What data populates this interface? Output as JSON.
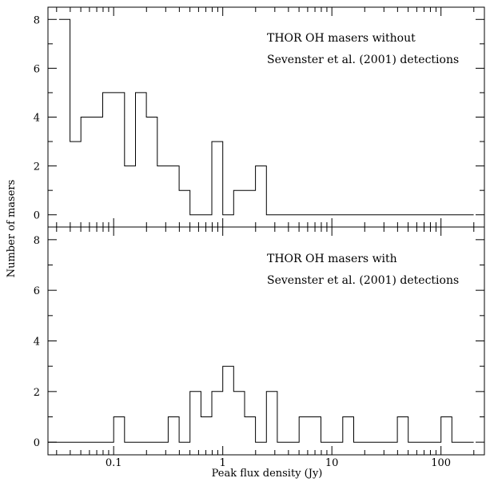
{
  "chart_data": {
    "type": "histogram",
    "xlabel": "Peak flux density (Jy)",
    "ylabel": "Number of masers",
    "xscale": "log",
    "xlim": [
      0.025,
      250
    ],
    "x_tick_labels": [
      "0.1",
      "1",
      "10",
      "100"
    ],
    "x_tick_values": [
      0.1,
      1,
      10,
      100
    ],
    "shared_x_axis": true,
    "panels": [
      {
        "annotation": [
          "THOR OH masers without",
          "Sevenster et al. (2001) detections"
        ],
        "ylim": [
          -0.5,
          8.5
        ],
        "y_tick_labels": [
          "0",
          "2",
          "4",
          "6",
          "8"
        ],
        "y_tick_values": [
          0,
          2,
          4,
          6,
          8
        ],
        "bin_edges": [
          0.0316,
          0.0398,
          0.0501,
          0.0631,
          0.0794,
          0.1,
          0.1259,
          0.1585,
          0.1995,
          0.2512,
          0.3162,
          0.3981,
          0.5012,
          0.631,
          0.7943,
          1.0,
          1.2589,
          1.5849,
          1.9953,
          2.5119,
          199.5
        ],
        "counts": [
          8,
          3,
          4,
          4,
          5,
          5,
          2,
          5,
          4,
          2,
          2,
          1,
          0,
          0,
          3,
          0,
          1,
          1,
          2,
          0
        ]
      },
      {
        "annotation": [
          "THOR OH masers with",
          "Sevenster et al. (2001) detections"
        ],
        "ylim": [
          -0.5,
          8.5
        ],
        "y_tick_labels": [
          "0",
          "2",
          "4",
          "6",
          "8"
        ],
        "y_tick_values": [
          0,
          2,
          4,
          6,
          8
        ],
        "bin_edges": [
          0.02512,
          0.1,
          0.1259,
          0.1585,
          0.1995,
          0.2512,
          0.3162,
          0.3981,
          0.5012,
          0.631,
          0.7943,
          1.0,
          1.2589,
          1.5849,
          1.9953,
          2.5119,
          3.1623,
          3.9811,
          5.0119,
          6.3096,
          7.9433,
          10.0,
          12.589,
          15.849,
          19.953,
          25.119,
          31.623,
          39.811,
          50.119,
          63.096,
          79.433,
          100.0,
          125.89,
          199.5
        ],
        "counts": [
          0,
          1,
          0,
          0,
          0,
          0,
          1,
          0,
          2,
          1,
          2,
          3,
          2,
          1,
          0,
          2,
          0,
          0,
          1,
          1,
          0,
          0,
          1,
          0,
          0,
          0,
          0,
          1,
          0,
          0,
          0,
          1,
          0
        ]
      }
    ]
  }
}
